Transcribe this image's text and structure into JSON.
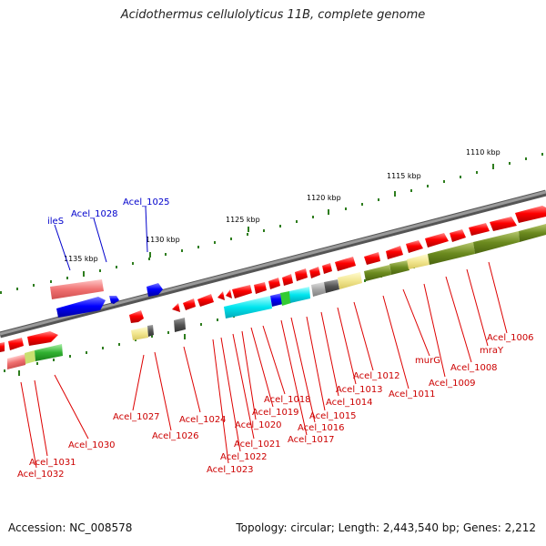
{
  "title": "Acidothermus cellulolyticus 11B, complete genome",
  "footer": {
    "accession": "Accession: NC_008578",
    "topology": "Topology: circular; Length: 2,443,540 bp; Genes: 2,212"
  },
  "colors": {
    "forward_gene": "#ff0000",
    "reverse_gene": "#0000ff",
    "label_red": "#cc0000",
    "label_blue": "#0000cc",
    "tick": "#2e7d1e",
    "backbone": "#888888"
  },
  "scale": {
    "ticks": [
      "1110 kbp",
      "1115 kbp",
      "1120 kbp",
      "1125 kbp",
      "1130 kbp",
      "1135 kbp"
    ]
  },
  "genes": {
    "blue": [
      "ileS",
      "Acel_1028",
      "Acel_1025"
    ],
    "red": [
      "Acel_1006",
      "mraY",
      "Acel_1008",
      "Acel_1009",
      "murG",
      "Acel_1011",
      "Acel_1012",
      "Acel_1013",
      "Acel_1014",
      "Acel_1015",
      "Acel_1016",
      "Acel_1017",
      "Acel_1018",
      "Acel_1019",
      "Acel_1020",
      "Acel_1021",
      "Acel_1022",
      "Acel_1023",
      "Acel_1024",
      "Acel_1026",
      "Acel_1027",
      "Acel_1030",
      "Acel_1031",
      "Acel_1032"
    ]
  }
}
